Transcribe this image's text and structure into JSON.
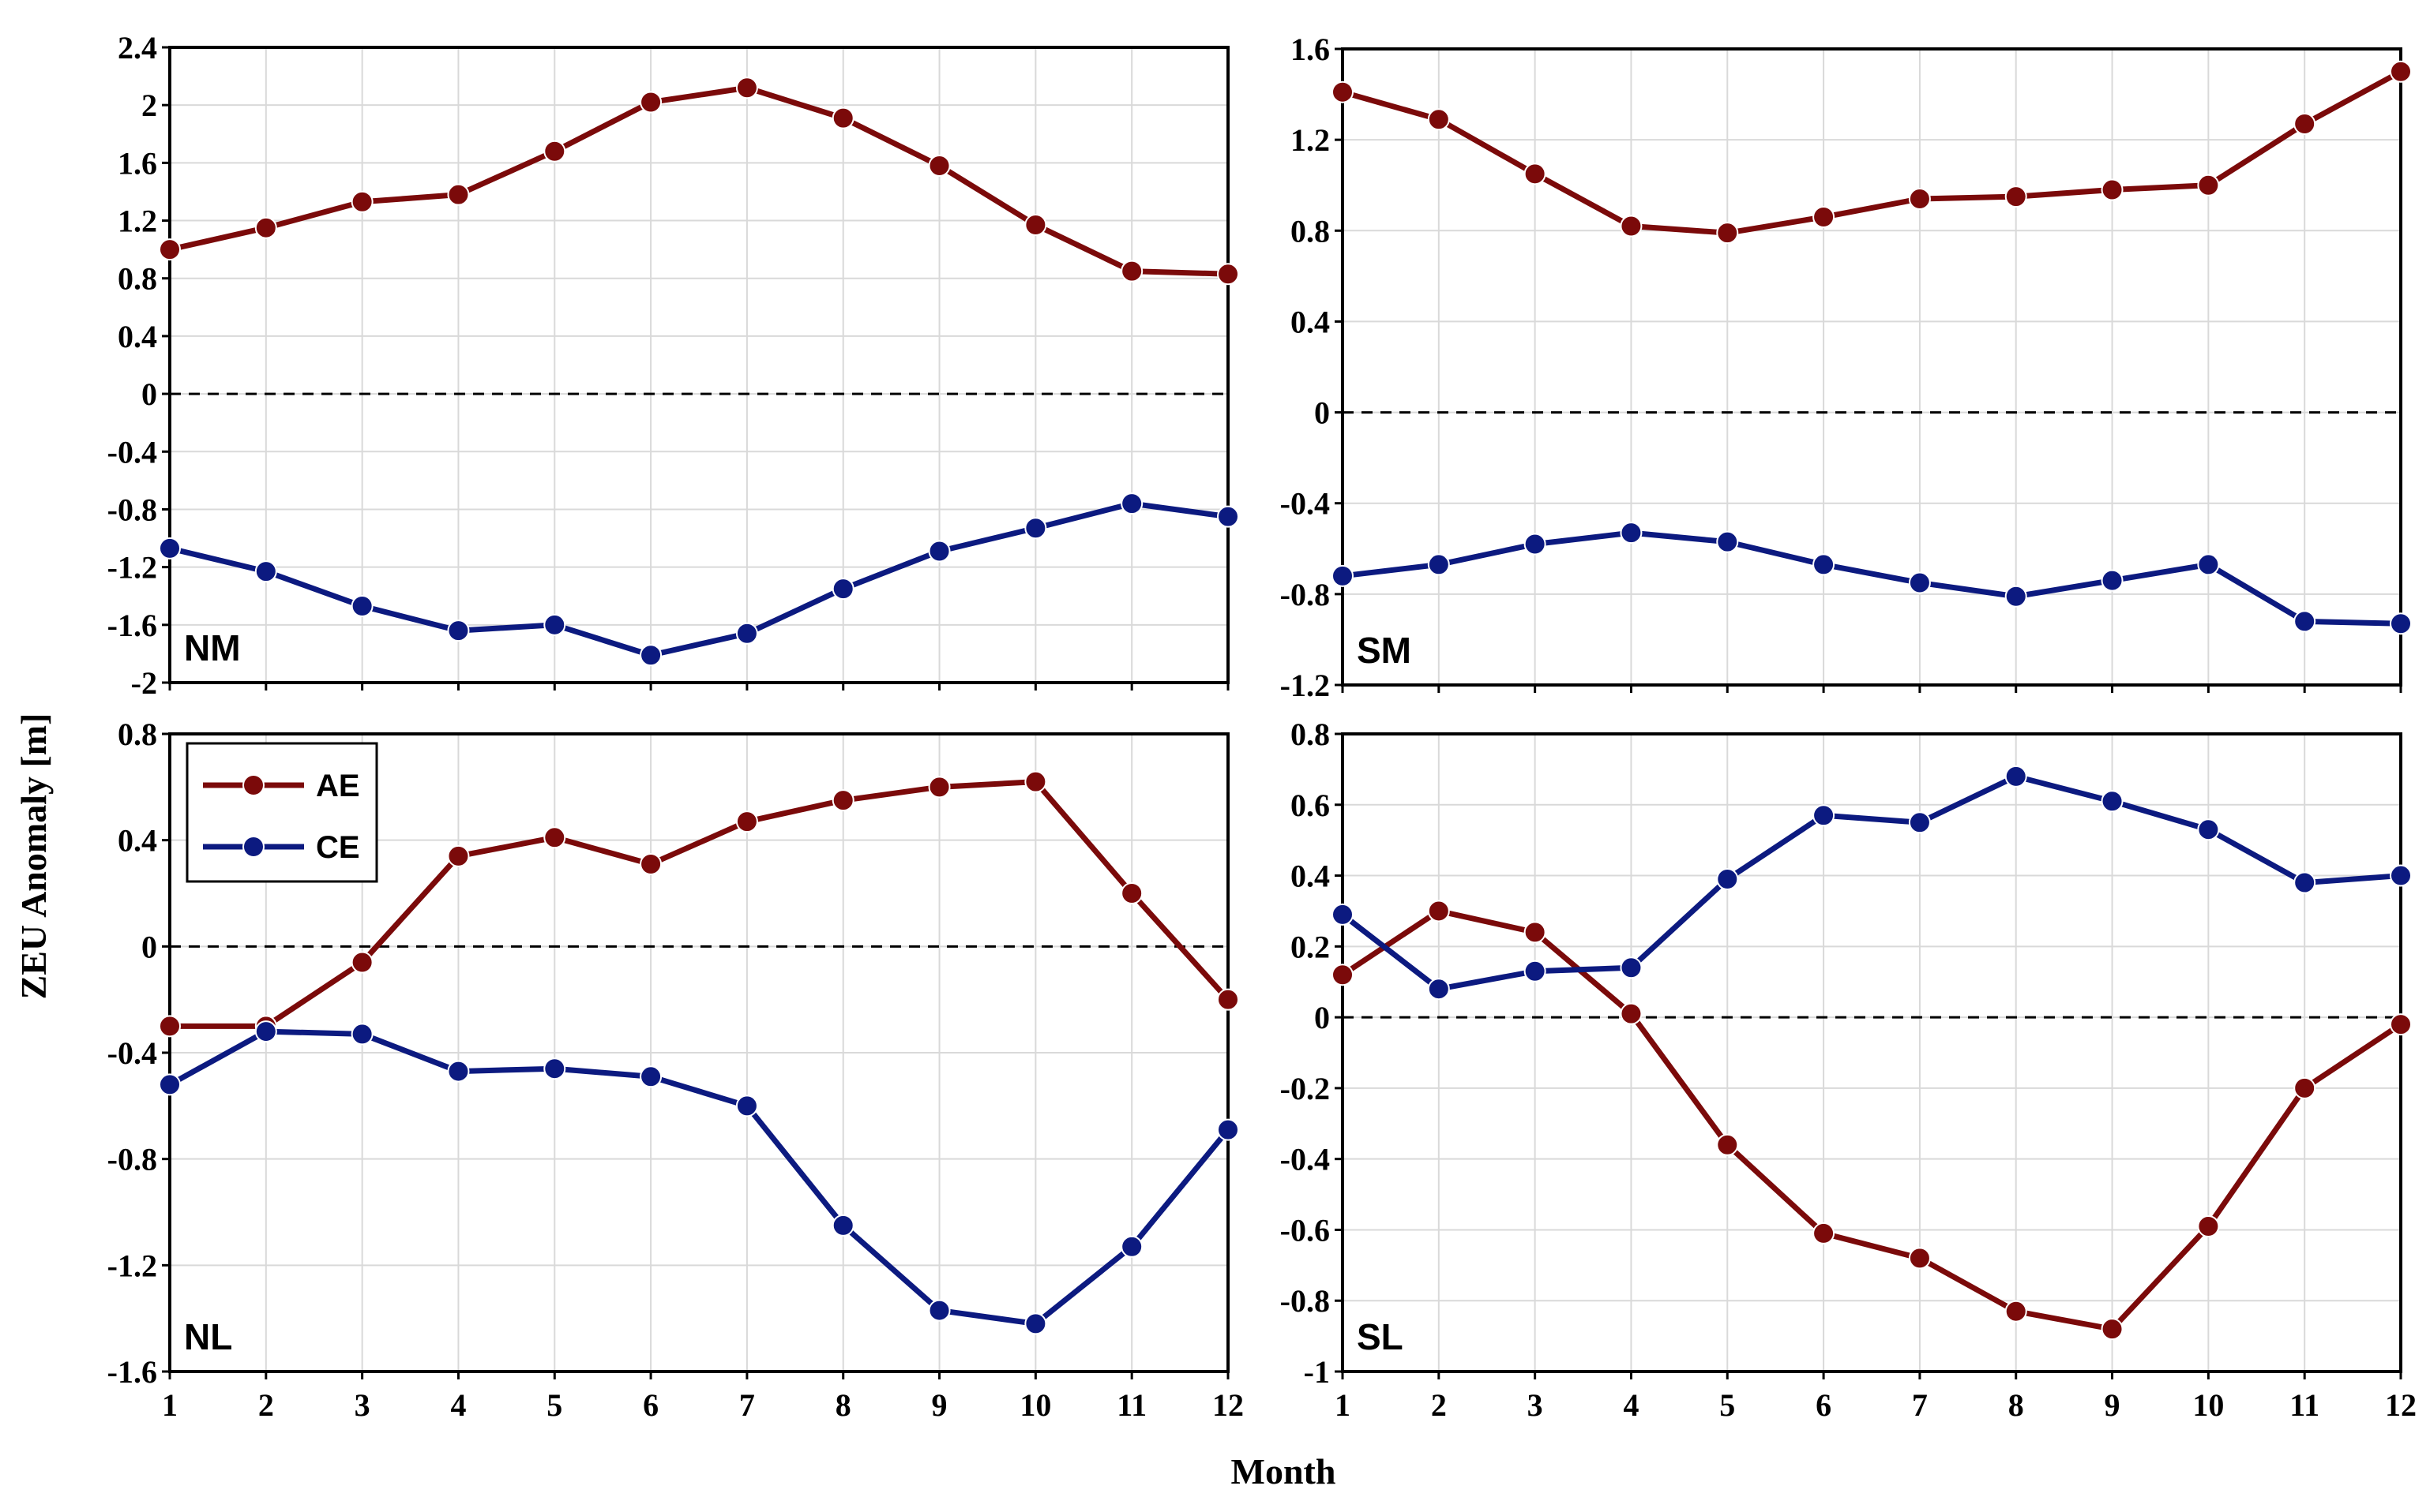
{
  "colors": {
    "AE": "#7b0a0a",
    "CE": "#0c1a80",
    "grid": "#d9d9d9",
    "frame": "#000000"
  },
  "axis_labels": {
    "y": "ZEU Anomaly [m]",
    "x": "Month"
  },
  "legend": {
    "items": [
      "AE",
      "CE"
    ]
  },
  "chart_data": [
    {
      "panel": "NM",
      "type": "line",
      "label": "NM",
      "x": [
        1,
        2,
        3,
        4,
        5,
        6,
        7,
        8,
        9,
        10,
        11,
        12
      ],
      "ylim": [
        -2,
        2.4
      ],
      "yticks": [
        -2,
        -1.6,
        -1.2,
        -0.8,
        -0.4,
        0,
        0.4,
        0.8,
        1.2,
        1.6,
        2,
        2.4
      ],
      "yticklabels": [
        "-2",
        "-1.6",
        "-1.2",
        "-0.8",
        "-0.4",
        "0",
        "0.4",
        "0.8",
        "1.2",
        "1.6",
        "2",
        "2.4"
      ],
      "series": [
        {
          "name": "AE",
          "values": [
            1.0,
            1.15,
            1.33,
            1.38,
            1.68,
            2.02,
            2.12,
            1.91,
            1.58,
            1.17,
            0.85,
            0.83
          ]
        },
        {
          "name": "CE",
          "values": [
            -1.07,
            -1.23,
            -1.47,
            -1.64,
            -1.6,
            -1.81,
            -1.66,
            -1.35,
            -1.09,
            -0.93,
            -0.76,
            -0.85
          ]
        }
      ]
    },
    {
      "panel": "SM",
      "type": "line",
      "label": "SM",
      "x": [
        1,
        2,
        3,
        4,
        5,
        6,
        7,
        8,
        9,
        10,
        11,
        12
      ],
      "ylim": [
        -1.2,
        1.6
      ],
      "yticks": [
        -1.2,
        -0.8,
        -0.4,
        0,
        0.4,
        0.8,
        1.2,
        1.6
      ],
      "yticklabels": [
        "-1.2",
        "-0.8",
        "-0.4",
        "0",
        "0.4",
        "0.8",
        "1.2",
        "1.6"
      ],
      "series": [
        {
          "name": "AE",
          "values": [
            1.41,
            1.29,
            1.05,
            0.82,
            0.79,
            0.86,
            0.94,
            0.95,
            0.98,
            1.0,
            1.27,
            1.5
          ]
        },
        {
          "name": "CE",
          "values": [
            -0.72,
            -0.67,
            -0.58,
            -0.53,
            -0.57,
            -0.67,
            -0.75,
            -0.81,
            -0.74,
            -0.67,
            -0.92,
            -0.93
          ]
        }
      ]
    },
    {
      "panel": "NL",
      "type": "line",
      "label": "NL",
      "x": [
        1,
        2,
        3,
        4,
        5,
        6,
        7,
        8,
        9,
        10,
        11,
        12
      ],
      "ylim": [
        -1.6,
        0.8
      ],
      "yticks": [
        -1.6,
        -1.2,
        -0.8,
        -0.4,
        0,
        0.4,
        0.8
      ],
      "yticklabels": [
        "-1.6",
        "-1.2",
        "-0.8",
        "-0.4",
        "0",
        "0.4",
        "0.8"
      ],
      "xticklabels": [
        "1",
        "2",
        "3",
        "4",
        "5",
        "6",
        "7",
        "8",
        "9",
        "10",
        "11",
        "12"
      ],
      "series": [
        {
          "name": "AE",
          "values": [
            -0.3,
            -0.3,
            -0.06,
            0.34,
            0.41,
            0.31,
            0.47,
            0.55,
            0.6,
            0.62,
            0.2,
            -0.2
          ]
        },
        {
          "name": "CE",
          "values": [
            -0.52,
            -0.32,
            -0.33,
            -0.47,
            -0.46,
            -0.49,
            -0.6,
            -1.05,
            -1.37,
            -1.42,
            -1.13,
            -0.69
          ]
        }
      ]
    },
    {
      "panel": "SL",
      "type": "line",
      "label": "SL",
      "x": [
        1,
        2,
        3,
        4,
        5,
        6,
        7,
        8,
        9,
        10,
        11,
        12
      ],
      "ylim": [
        -1,
        0.8
      ],
      "yticks": [
        -1,
        -0.8,
        -0.6,
        -0.4,
        -0.2,
        0,
        0.2,
        0.4,
        0.6,
        0.8
      ],
      "yticklabels": [
        "-1",
        "-0.8",
        "-0.6",
        "-0.4",
        "-0.2",
        "0",
        "0.2",
        "0.4",
        "0.6",
        "0.8"
      ],
      "xticklabels": [
        "1",
        "2",
        "3",
        "4",
        "5",
        "6",
        "7",
        "8",
        "9",
        "10",
        "11",
        "12"
      ],
      "series": [
        {
          "name": "AE",
          "values": [
            0.12,
            0.3,
            0.24,
            0.01,
            -0.36,
            -0.61,
            -0.68,
            -0.83,
            -0.88,
            -0.59,
            -0.2,
            -0.02
          ]
        },
        {
          "name": "CE",
          "values": [
            0.29,
            0.08,
            0.13,
            0.14,
            0.39,
            0.57,
            0.55,
            0.68,
            0.61,
            0.53,
            0.38,
            0.4
          ]
        }
      ]
    }
  ]
}
